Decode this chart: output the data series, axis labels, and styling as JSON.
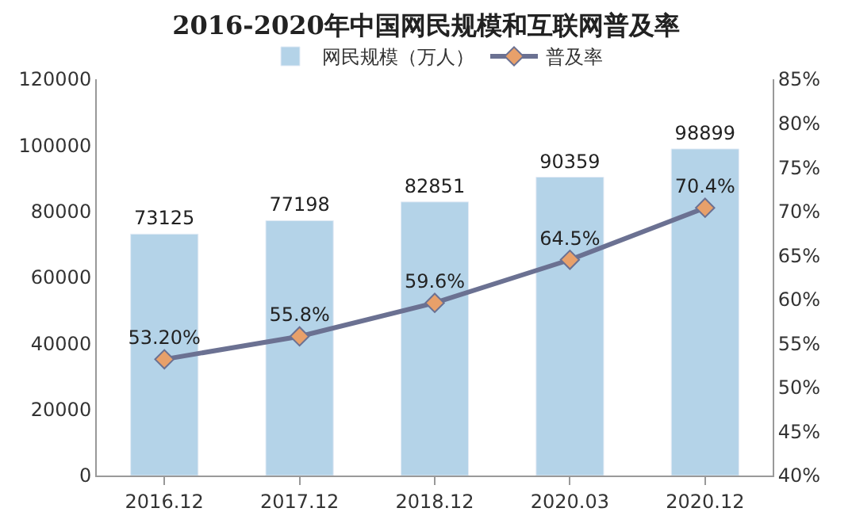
{
  "chart_data": {
    "type": "bar",
    "title": "2016-2020年中国网民规模和互联网普及率",
    "categories": [
      "2016.12",
      "2017.12",
      "2018.12",
      "2020.03",
      "2020.12"
    ],
    "series": [
      {
        "name": "网民规模（万人）",
        "color": "#b4d3e8",
        "values": [
          73125,
          77198,
          82851,
          90359,
          98899
        ],
        "value_labels": [
          "73125",
          "77198",
          "82851",
          "90359",
          "98899"
        ]
      },
      {
        "name": "普及率",
        "type": "line",
        "axis": "y2",
        "color": "#6b7192",
        "marker": "diamond",
        "values": [
          53.2,
          55.8,
          59.6,
          64.5,
          70.4
        ],
        "value_labels": [
          "53.20%",
          "55.8%",
          "59.6%",
          "64.5%",
          "70.4%"
        ]
      }
    ],
    "ylim": [
      0,
      120000
    ],
    "yticks": [
      0,
      20000,
      40000,
      60000,
      80000,
      100000,
      120000
    ],
    "y2lim": [
      40,
      85
    ],
    "y2ticks": [
      {
        "value": 40,
        "label": "40%"
      },
      {
        "value": 45,
        "label": "45%"
      },
      {
        "value": 50,
        "label": "50%"
      },
      {
        "value": 55,
        "label": "55%"
      },
      {
        "value": 60,
        "label": "60%"
      },
      {
        "value": 65,
        "label": "65%"
      },
      {
        "value": 70,
        "label": "70%"
      },
      {
        "value": 75,
        "label": "75%"
      },
      {
        "value": 80,
        "label": "80%"
      },
      {
        "value": 85,
        "label": "85%"
      }
    ],
    "legend": "top"
  }
}
